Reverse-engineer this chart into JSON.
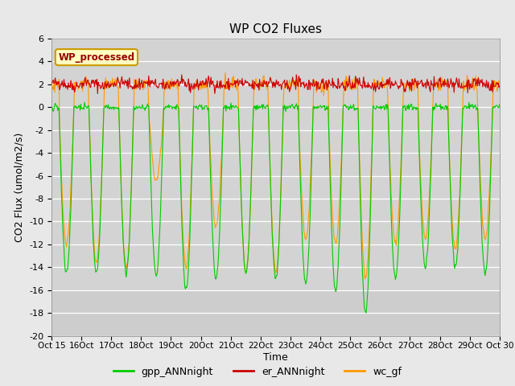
{
  "title": "WP CO2 Fluxes",
  "xlabel": "Time",
  "ylabel_display": "CO2 Flux (umol/m2/s)",
  "xlim": [
    0,
    360
  ],
  "ylim": [
    -20,
    6
  ],
  "yticks": [
    -20,
    -18,
    -16,
    -14,
    -12,
    -10,
    -8,
    -6,
    -4,
    -2,
    0,
    2,
    4,
    6
  ],
  "xtick_labels": [
    "Oct 15",
    "Oct 16",
    "Oct 17",
    "Oct 18",
    "Oct 19",
    "Oct 20",
    "Oct 21",
    "Oct 22",
    "Oct 23",
    "Oct 24",
    "Oct 25",
    "Oct 26",
    "Oct 27",
    "Oct 28",
    "Oct 29",
    "Oct 30"
  ],
  "xtick_positions": [
    0,
    24,
    48,
    72,
    96,
    120,
    144,
    168,
    192,
    216,
    240,
    264,
    288,
    312,
    336,
    360
  ],
  "color_gpp": "#00cc00",
  "color_er": "#cc0000",
  "color_wc": "#ff9900",
  "legend_label_gpp": "gpp_ANNnight",
  "legend_label_er": "er_ANNnight",
  "legend_label_wc": "wc_gf",
  "inset_label": "WP_processed",
  "bg_color": "#e8e8e8",
  "plot_bg_color": "#d3d3d3",
  "n_days": 16,
  "points_per_day": 48
}
